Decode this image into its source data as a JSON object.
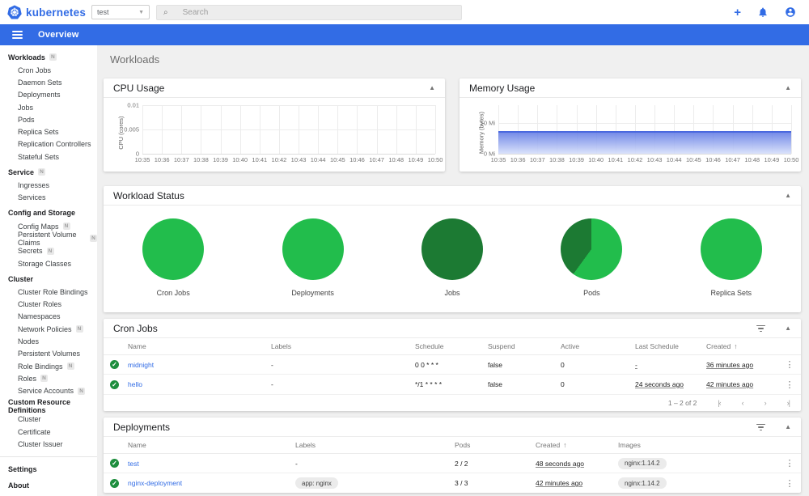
{
  "colors": {
    "brand_blue": "#326ce5",
    "green_bright": "#22bd4c",
    "green_dark": "#1c7a33",
    "check_green": "#1e8e3e",
    "memory_fill_line": "#4a68de"
  },
  "icons": {
    "dropdown_caret": "▼",
    "search_glyph": "⌕",
    "plus": "+",
    "collapse_caret": "▲",
    "sort_asc": "↑",
    "check": "✓",
    "menu_dots": "⋮",
    "page_first": "|‹",
    "page_prev": "‹",
    "page_next": "›",
    "page_last": "›|"
  },
  "header": {
    "logo_text": "kubernetes",
    "namespace_value": "test",
    "search_placeholder": "Search"
  },
  "toolbar": {
    "title": "Overview"
  },
  "sidebar": {
    "badge_text": "N",
    "sections": [
      {
        "header": "Workloads",
        "header_badge": true,
        "items": [
          {
            "label": "Cron Jobs"
          },
          {
            "label": "Daemon Sets"
          },
          {
            "label": "Deployments"
          },
          {
            "label": "Jobs"
          },
          {
            "label": "Pods"
          },
          {
            "label": "Replica Sets"
          },
          {
            "label": "Replication Controllers"
          },
          {
            "label": "Stateful Sets"
          }
        ]
      },
      {
        "header": "Service",
        "header_badge": true,
        "items": [
          {
            "label": "Ingresses"
          },
          {
            "label": "Services"
          }
        ]
      },
      {
        "header": "Config and Storage",
        "header_badge": false,
        "items": [
          {
            "label": "Config Maps",
            "badge": true
          },
          {
            "label": "Persistent Volume Claims",
            "badge": true
          },
          {
            "label": "Secrets",
            "badge": true
          },
          {
            "label": "Storage Classes"
          }
        ]
      },
      {
        "header": "Cluster",
        "header_badge": false,
        "items": [
          {
            "label": "Cluster Role Bindings"
          },
          {
            "label": "Cluster Roles"
          },
          {
            "label": "Namespaces"
          },
          {
            "label": "Network Policies",
            "badge": true
          },
          {
            "label": "Nodes"
          },
          {
            "label": "Persistent Volumes"
          },
          {
            "label": "Role Bindings",
            "badge": true
          },
          {
            "label": "Roles",
            "badge": true
          },
          {
            "label": "Service Accounts",
            "badge": true
          }
        ]
      },
      {
        "header": "Custom Resource Definitions",
        "header_badge": false,
        "items": [
          {
            "label": "Cluster"
          },
          {
            "label": "Certificate"
          },
          {
            "label": "Cluster Issuer"
          }
        ]
      }
    ],
    "footer_items": [
      {
        "label": "Settings"
      },
      {
        "label": "About"
      }
    ]
  },
  "page": {
    "title": "Workloads"
  },
  "chart_data": [
    {
      "type": "area",
      "title": "CPU Usage",
      "ylabel": "CPU (cores)",
      "yticks": [
        {
          "label": "0.01",
          "pos_pct": 0
        },
        {
          "label": "0.005",
          "pos_pct": 50
        },
        {
          "label": "0",
          "pos_pct": 100
        }
      ],
      "xticks": [
        "10:35",
        "10:36",
        "10:37",
        "10:38",
        "10:39",
        "10:40",
        "10:41",
        "10:42",
        "10:43",
        "10:44",
        "10:45",
        "10:46",
        "10:47",
        "10:48",
        "10:49",
        "10:50"
      ],
      "series": [],
      "ylim": [
        0,
        0.01
      ]
    },
    {
      "type": "area",
      "title": "Memory Usage",
      "ylabel": "Memory (bytes)",
      "yticks": [
        {
          "label": "10 Mi",
          "pos_pct": 36
        },
        {
          "label": "0 Mi",
          "pos_pct": 100
        }
      ],
      "xticks": [
        "10:35",
        "10:36",
        "10:37",
        "10:38",
        "10:39",
        "10:40",
        "10:41",
        "10:42",
        "10:43",
        "10:44",
        "10:45",
        "10:46",
        "10:47",
        "10:48",
        "10:49",
        "10:50"
      ],
      "series": [
        {
          "name": "memory",
          "flat_value": "7.5 Mi",
          "fill_height_pct": 47
        }
      ],
      "ylim_mi": [
        0,
        15.6
      ]
    },
    {
      "type": "pie",
      "title": "Workload Status",
      "pies": [
        {
          "label": "Cron Jobs",
          "slices": [
            {
              "name": "running",
              "color": "#22bd4c",
              "fraction": 1.0
            }
          ]
        },
        {
          "label": "Deployments",
          "slices": [
            {
              "name": "running",
              "color": "#22bd4c",
              "fraction": 1.0
            }
          ]
        },
        {
          "label": "Jobs",
          "slices": [
            {
              "name": "succeeded",
              "color": "#1c7a33",
              "fraction": 1.0
            }
          ]
        },
        {
          "label": "Pods",
          "slices": [
            {
              "name": "running",
              "color": "#22bd4c",
              "fraction": 0.6
            },
            {
              "name": "succeeded",
              "color": "#1c7a33",
              "fraction": 0.4
            }
          ]
        },
        {
          "label": "Replica Sets",
          "slices": [
            {
              "name": "running",
              "color": "#22bd4c",
              "fraction": 1.0
            }
          ]
        }
      ]
    }
  ],
  "workload_status_title": "Workload Status",
  "cron_jobs": {
    "title": "Cron Jobs",
    "headers": {
      "name": "Name",
      "labels": "Labels",
      "schedule": "Schedule",
      "suspend": "Suspend",
      "active": "Active",
      "last_schedule": "Last Schedule",
      "created": "Created"
    },
    "sorted_by": "created",
    "rows": [
      {
        "status": "ok",
        "name": "midnight",
        "labels": "-",
        "schedule": "0 0 * * *",
        "suspend": "false",
        "active": "0",
        "last_schedule": "-",
        "created": "36 minutes ago"
      },
      {
        "status": "ok",
        "name": "hello",
        "labels": "-",
        "schedule": "*/1 * * * *",
        "suspend": "false",
        "active": "0",
        "last_schedule": "24 seconds ago",
        "created": "42 minutes ago"
      }
    ],
    "pagination": "1 – 2 of 2"
  },
  "deployments": {
    "title": "Deployments",
    "headers": {
      "name": "Name",
      "labels": "Labels",
      "pods": "Pods",
      "created": "Created",
      "images": "Images"
    },
    "sorted_by": "created",
    "rows": [
      {
        "status": "ok",
        "name": "test",
        "labels": "-",
        "labels_chip": false,
        "pods": "2 / 2",
        "created": "48 seconds ago",
        "images": "nginx:1.14.2"
      },
      {
        "status": "ok",
        "name": "nginx-deployment",
        "labels": "app: nginx",
        "labels_chip": true,
        "pods": "3 / 3",
        "created": "42 minutes ago",
        "images": "nginx:1.14.2"
      }
    ]
  }
}
